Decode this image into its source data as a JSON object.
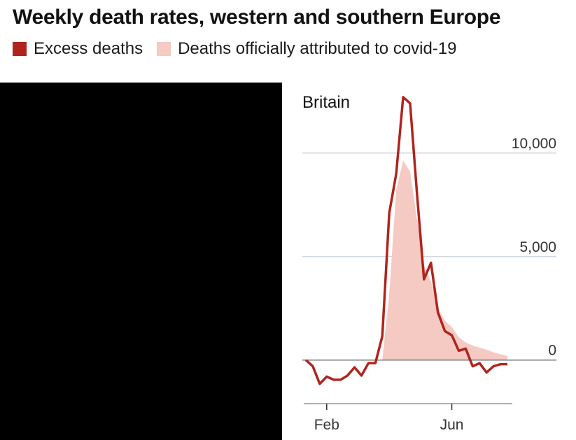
{
  "title": "Weekly death rates, western and southern Europe",
  "legend": [
    {
      "label": "Excess deaths",
      "color": "#b0241d"
    },
    {
      "label": "Deaths officially attributed to covid-19",
      "color": "#f4cac3"
    }
  ],
  "chart_data": {
    "type": "line",
    "panel_title": "Britain",
    "y_ticks": [
      {
        "value": 10000,
        "label": "10,000"
      },
      {
        "value": 5000,
        "label": "5,000"
      },
      {
        "value": 0,
        "label": "0"
      }
    ],
    "x_ticks": [
      {
        "week": 3,
        "label": "Feb"
      },
      {
        "week": 21,
        "label": "Jun"
      }
    ],
    "ylim": [
      -1800,
      13000
    ],
    "xlim": [
      0,
      30
    ],
    "series": [
      {
        "name": "Excess deaths",
        "type": "line",
        "color": "#b0241d",
        "x": [
          0,
          1,
          2,
          3,
          4,
          5,
          6,
          7,
          8,
          9,
          10,
          11,
          12,
          13,
          14,
          15,
          16,
          17,
          18,
          19,
          20,
          21,
          22,
          23,
          24,
          25,
          26,
          27,
          28,
          29
        ],
        "values": [
          0,
          -300,
          -1150,
          -800,
          -950,
          -950,
          -750,
          -350,
          -750,
          -150,
          -150,
          1150,
          7100,
          9000,
          12700,
          12400,
          8000,
          3900,
          4700,
          2300,
          1400,
          1200,
          450,
          550,
          -300,
          -150,
          -600,
          -300,
          -200,
          -200
        ]
      },
      {
        "name": "Deaths officially attributed to covid-19",
        "type": "area",
        "color": "#f4cac3",
        "x": [
          11,
          12,
          13,
          14,
          15,
          16,
          17,
          18,
          19,
          20,
          21,
          22,
          23,
          24,
          25,
          26,
          27,
          28,
          29
        ],
        "values": [
          0,
          3200,
          8200,
          9650,
          9100,
          6800,
          4600,
          3800,
          2500,
          1900,
          1600,
          1100,
          850,
          700,
          600,
          500,
          380,
          280,
          200
        ]
      }
    ]
  }
}
